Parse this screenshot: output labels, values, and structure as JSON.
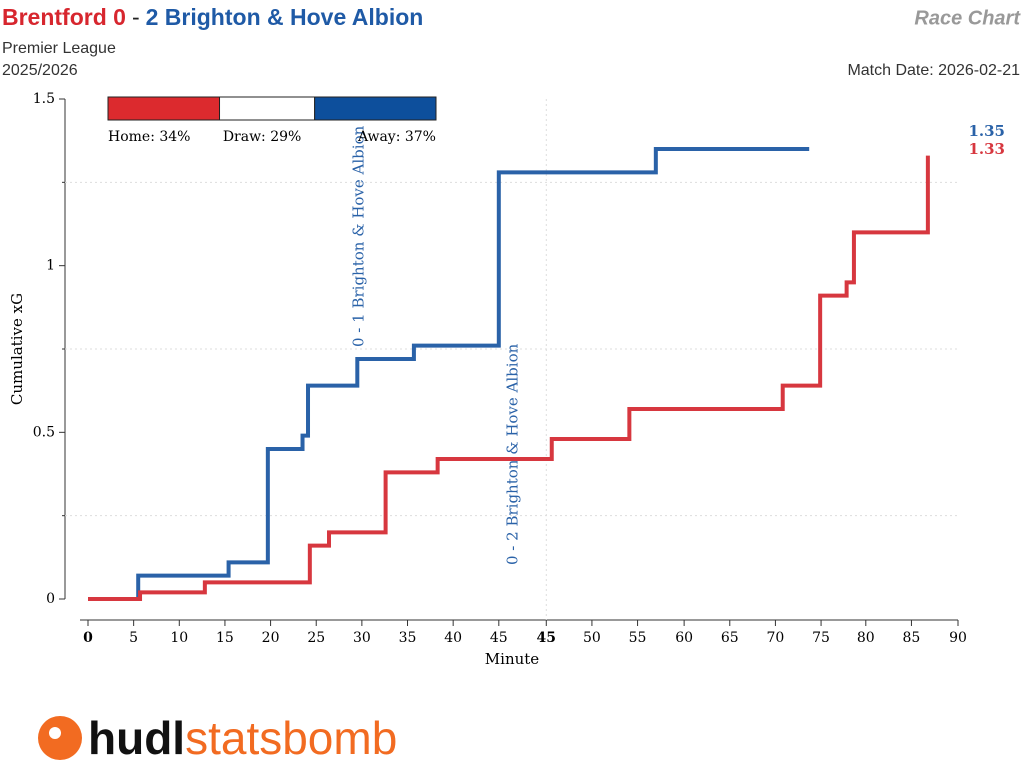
{
  "chart_data": {
    "type": "step",
    "title_parts": [
      "Brentford 0",
      "-",
      "2 Brighton & Hove Albion"
    ],
    "title_colors": [
      "#d7262e",
      "#222222",
      "#1f5aa6"
    ],
    "competition": "Premier League",
    "season": "2025/2026",
    "chart_name": "Race Chart",
    "match_date": "Match Date: 2026-02-21",
    "ylabel": "Cumulative xG",
    "xlabel": "Minute",
    "xlim": [
      0,
      95.3
    ],
    "ylim": [
      0,
      1.5
    ],
    "yticks": [
      0,
      0.5,
      1,
      1.5
    ],
    "minor_yticks": [
      0.25,
      0.75,
      1.25
    ],
    "xticks": [
      0,
      5,
      10,
      15,
      20,
      25,
      30,
      35,
      40,
      45,
      {
        "value": 50.2,
        "label": "45"
      },
      {
        "value": 55.2,
        "label": "50"
      },
      {
        "value": 60.2,
        "label": "55"
      },
      {
        "value": 65.3,
        "label": "60"
      },
      {
        "value": 70.3,
        "label": "65"
      },
      {
        "value": 75.3,
        "label": "70"
      },
      {
        "value": 80.3,
        "label": "75"
      },
      {
        "value": 85.2,
        "label": "80"
      },
      {
        "value": 90.2,
        "label": "85"
      },
      {
        "value": 95.3,
        "label": "90"
      }
    ],
    "series": [
      {
        "name": "Brighton & Hove Albion",
        "color": "#2a62a8",
        "x": [
          0,
          5.5,
          15.4,
          19.7,
          23.5,
          24.1,
          29.5,
          35.7,
          45.0,
          62.2,
          79.0
        ],
        "values": [
          0,
          0.07,
          0.11,
          0.45,
          0.49,
          0.64,
          0.72,
          0.76,
          1.28,
          1.35,
          1.35
        ]
      },
      {
        "name": "Brentford",
        "color": "#d7373f",
        "x": [
          0,
          5.7,
          12.8,
          24.3,
          26.4,
          32.6,
          38.3,
          50.8,
          59.3,
          76.1,
          80.2,
          83.1,
          83.9,
          92.0
        ],
        "values": [
          0,
          0.02,
          0.05,
          0.16,
          0.2,
          0.38,
          0.42,
          0.48,
          0.57,
          0.64,
          0.91,
          0.95,
          1.1,
          1.33
        ]
      }
    ],
    "annotations": [
      {
        "x": 29.5,
        "text": "0 - 1 Brighton & Hove Albion"
      },
      {
        "x": 46.4,
        "text": "0 - 2 Brighton & Hove Albion"
      }
    ],
    "probabilities": {
      "labels": [
        "Home: 34%",
        "Draw: 29%",
        "Away: 37%"
      ],
      "values": [
        34,
        29,
        37
      ],
      "colors": [
        "#dc2a2e",
        "#ffffff",
        "#0d4f9c"
      ]
    },
    "logo": [
      "hudl",
      "statsbomb"
    ]
  }
}
